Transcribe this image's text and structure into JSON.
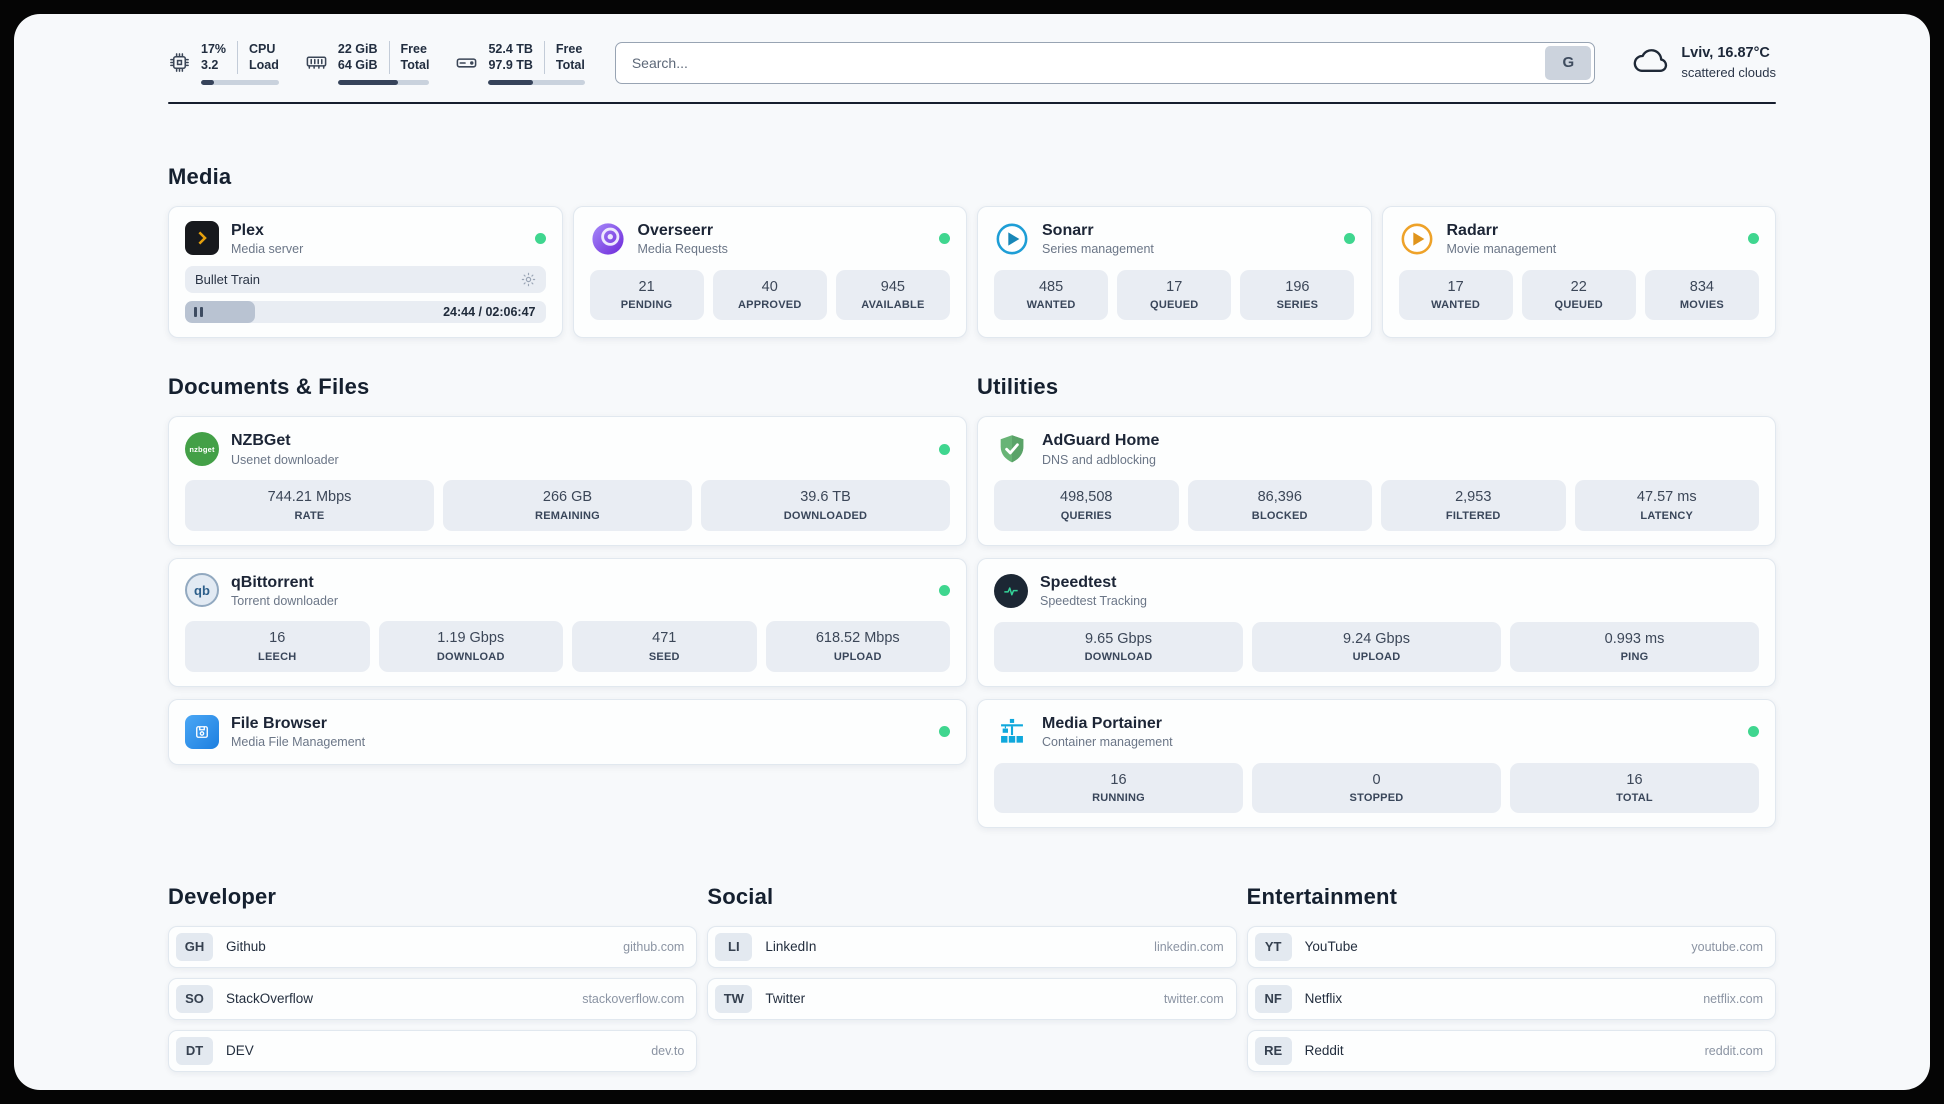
{
  "colors": {
    "status_green": "#3fd68f",
    "bar_fill": "#36435a",
    "bar_track": "#c9d2dd",
    "stat_box_bg": "#e9edf3",
    "plex_yellow": "#e5a00d",
    "sonarr_blue": "#1e9ed6",
    "radarr_yellow": "#eea229",
    "adguard_green": "#68b476",
    "speedtest_green": "#34d399",
    "portainer_blue": "#0fa8dc",
    "nzbget_green": "#43a047"
  },
  "header": {
    "monitors": [
      {
        "id": "cpu",
        "values": [
          "17%",
          "3.2"
        ],
        "labels": [
          "CPU",
          "Load"
        ],
        "progress_pct": 17
      },
      {
        "id": "memory",
        "values": [
          "22 GiB",
          "64 GiB"
        ],
        "labels": [
          "Free",
          "Total"
        ],
        "progress_pct": 66
      },
      {
        "id": "storage",
        "values": [
          "52.4 TB",
          "97.9 TB"
        ],
        "labels": [
          "Free",
          "Total"
        ],
        "progress_pct": 46
      }
    ],
    "search": {
      "placeholder": "Search...",
      "provider_button": "G"
    },
    "weather": {
      "location": "Lviv, 16.87°C",
      "condition": "scattered clouds"
    }
  },
  "sections": {
    "media": {
      "title": "Media",
      "plex": {
        "name": "Plex",
        "subtitle": "Media server",
        "now_playing": "Bullet Train",
        "time_display": "24:44 / 02:06:47",
        "progress_pct": 19.5
      },
      "overseerr": {
        "name": "Overseerr",
        "subtitle": "Media Requests",
        "stats": [
          {
            "value": "21",
            "label": "PENDING"
          },
          {
            "value": "40",
            "label": "APPROVED"
          },
          {
            "value": "945",
            "label": "AVAILABLE"
          }
        ]
      },
      "sonarr": {
        "name": "Sonarr",
        "subtitle": "Series management",
        "stats": [
          {
            "value": "485",
            "label": "WANTED"
          },
          {
            "value": "17",
            "label": "QUEUED"
          },
          {
            "value": "196",
            "label": "SERIES"
          }
        ]
      },
      "radarr": {
        "name": "Radarr",
        "subtitle": "Movie management",
        "stats": [
          {
            "value": "17",
            "label": "WANTED"
          },
          {
            "value": "22",
            "label": "QUEUED"
          },
          {
            "value": "834",
            "label": "MOVIES"
          }
        ]
      }
    },
    "documents": {
      "title": "Documents & Files",
      "nzbget": {
        "name": "NZBGet",
        "subtitle": "Usenet downloader",
        "icon_text": "nzbget",
        "stats": [
          {
            "value": "744.21 Mbps",
            "label": "RATE"
          },
          {
            "value": "266 GB",
            "label": "REMAINING"
          },
          {
            "value": "39.6 TB",
            "label": "DOWNLOADED"
          }
        ]
      },
      "qbittorrent": {
        "name": "qBittorrent",
        "subtitle": "Torrent downloader",
        "icon_text": "qb",
        "stats": [
          {
            "value": "16",
            "label": "LEECH"
          },
          {
            "value": "1.19 Gbps",
            "label": "DOWNLOAD"
          },
          {
            "value": "471",
            "label": "SEED"
          },
          {
            "value": "618.52 Mbps",
            "label": "UPLOAD"
          }
        ]
      },
      "filebrowser": {
        "name": "File Browser",
        "subtitle": "Media File Management"
      }
    },
    "utilities": {
      "title": "Utilities",
      "adguard": {
        "name": "AdGuard Home",
        "subtitle": "DNS and adblocking",
        "stats": [
          {
            "value": "498,508",
            "label": "QUERIES"
          },
          {
            "value": "86,396",
            "label": "BLOCKED"
          },
          {
            "value": "2,953",
            "label": "FILTERED"
          },
          {
            "value": "47.57 ms",
            "label": "LATENCY"
          }
        ]
      },
      "speedtest": {
        "name": "Speedtest",
        "subtitle": "Speedtest Tracking",
        "stats": [
          {
            "value": "9.65 Gbps",
            "label": "DOWNLOAD"
          },
          {
            "value": "9.24 Gbps",
            "label": "UPLOAD"
          },
          {
            "value": "0.993 ms",
            "label": "PING"
          }
        ]
      },
      "portainer": {
        "name": "Media Portainer",
        "subtitle": "Container management",
        "stats": [
          {
            "value": "16",
            "label": "RUNNING"
          },
          {
            "value": "0",
            "label": "STOPPED"
          },
          {
            "value": "16",
            "label": "TOTAL"
          }
        ]
      }
    },
    "developer": {
      "title": "Developer",
      "links": [
        {
          "abbr": "GH",
          "name": "Github",
          "domain": "github.com"
        },
        {
          "abbr": "SO",
          "name": "StackOverflow",
          "domain": "stackoverflow.com"
        },
        {
          "abbr": "DT",
          "name": "DEV",
          "domain": "dev.to"
        }
      ]
    },
    "social": {
      "title": "Social",
      "links": [
        {
          "abbr": "LI",
          "name": "LinkedIn",
          "domain": "linkedin.com"
        },
        {
          "abbr": "TW",
          "name": "Twitter",
          "domain": "twitter.com"
        }
      ]
    },
    "entertainment": {
      "title": "Entertainment",
      "links": [
        {
          "abbr": "YT",
          "name": "YouTube",
          "domain": "youtube.com"
        },
        {
          "abbr": "NF",
          "name": "Netflix",
          "domain": "netflix.com"
        },
        {
          "abbr": "RE",
          "name": "Reddit",
          "domain": "reddit.com"
        }
      ]
    }
  }
}
